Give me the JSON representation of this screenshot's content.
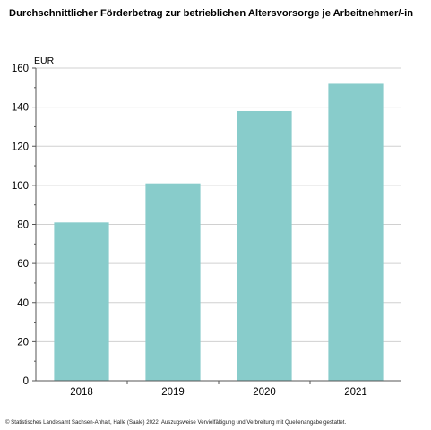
{
  "chart_data": {
    "type": "bar",
    "title": "Durchschnittlicher Förderbetrag zur betrieblichen Altersvorsorge je Arbeitnehmer/-in",
    "ylabel": "EUR",
    "xlabel": "",
    "categories": [
      "2018",
      "2019",
      "2020",
      "2021"
    ],
    "values": [
      81,
      101,
      138,
      152
    ],
    "ylim": [
      0,
      160
    ],
    "yticks": [
      0,
      20,
      40,
      60,
      80,
      100,
      120,
      140,
      160
    ],
    "grid": true,
    "bar_color": "#88cccb",
    "grid_color": "#d0d0d0"
  },
  "footer": "© Statistisches Landesamt Sachsen-Anhalt, Halle (Saale) 2022, Auszugsweise Vervielfältigung und Verbreitung mit Quellenangabe gestattet."
}
